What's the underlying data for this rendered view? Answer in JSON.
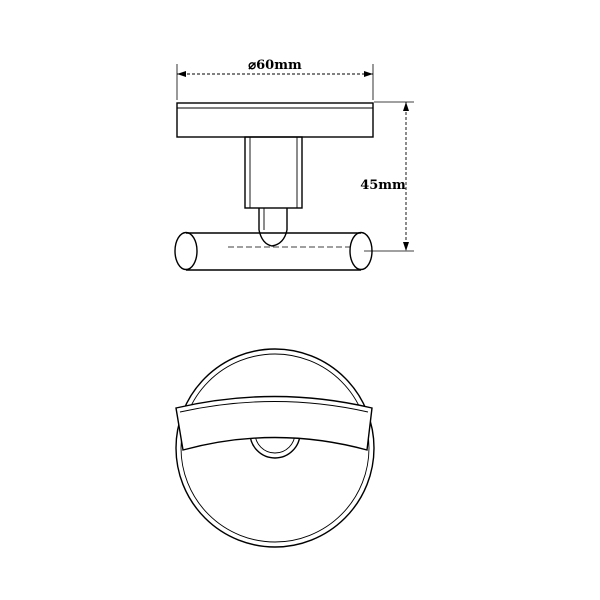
{
  "dimensions": {
    "diameter_symbol": "⌀",
    "diameter_value": "60mm",
    "height_value": "45mm"
  },
  "colors": {
    "stroke": "#000000",
    "background": "#ffffff"
  }
}
